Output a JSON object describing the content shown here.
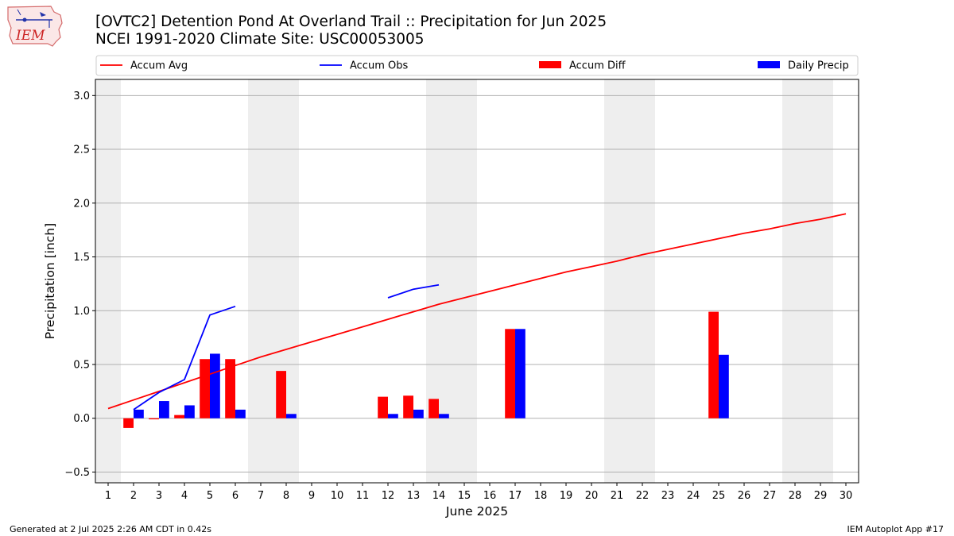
{
  "header": {
    "title_line1": "[OVTC2] Detention Pond At Overland Trail :: Precipitation for Jun 2025",
    "title_line2": "NCEI 1991-2020 Climate Site: USC00053005",
    "logo_text": "IEM"
  },
  "footer": {
    "left": "Generated at 2 Jul 2025 2:26 AM CDT in 0.42s",
    "right": "IEM Autoplot App #17"
  },
  "colors": {
    "avg": "#ff0000",
    "obs": "#0000ff",
    "diff": "#ff0000",
    "daily": "#0000ff",
    "weekend_band": "#eeeeee",
    "grid": "#b0b0b0"
  },
  "chart_data": {
    "type": "bar",
    "xlabel": "June 2025",
    "ylabel": "Precipitation [inch]",
    "xlim": [
      0.5,
      30.5
    ],
    "ylim": [
      -0.6,
      3.15
    ],
    "yticks": [
      -0.5,
      0.0,
      0.5,
      1.0,
      1.5,
      2.0,
      2.5,
      3.0
    ],
    "ytick_labels": [
      "−0.5",
      "0.0",
      "0.5",
      "1.0",
      "1.5",
      "2.0",
      "2.5",
      "3.0"
    ],
    "x": [
      1,
      2,
      3,
      4,
      5,
      6,
      7,
      8,
      9,
      10,
      11,
      12,
      13,
      14,
      15,
      16,
      17,
      18,
      19,
      20,
      21,
      22,
      23,
      24,
      25,
      26,
      27,
      28,
      29,
      30
    ],
    "xtick_labels": [
      "1",
      "2",
      "3",
      "4",
      "5",
      "6",
      "7",
      "8",
      "9",
      "10",
      "11",
      "12",
      "13",
      "14",
      "15",
      "16",
      "17",
      "18",
      "19",
      "20",
      "21",
      "22",
      "23",
      "24",
      "25",
      "26",
      "27",
      "28",
      "29",
      "30"
    ],
    "grid": "horizontal",
    "legend_position": "top",
    "weekend_spans": [
      [
        0.5,
        1.5
      ],
      [
        6.5,
        8.5
      ],
      [
        13.5,
        15.5
      ],
      [
        20.5,
        22.5
      ],
      [
        27.5,
        29.5
      ]
    ],
    "series": [
      {
        "name": "Accum Avg",
        "kind": "line",
        "values": [
          0.09,
          0.17,
          0.25,
          0.33,
          0.41,
          0.49,
          0.57,
          0.64,
          0.71,
          0.78,
          0.85,
          0.92,
          0.99,
          1.06,
          1.12,
          1.18,
          1.24,
          1.3,
          1.36,
          1.41,
          1.46,
          1.52,
          1.57,
          1.62,
          1.67,
          1.72,
          1.76,
          1.81,
          1.85,
          1.9
        ]
      },
      {
        "name": "Accum Obs",
        "kind": "line",
        "values": [
          null,
          0.08,
          0.24,
          0.36,
          0.96,
          1.04,
          null,
          null,
          null,
          null,
          null,
          1.12,
          1.2,
          1.24,
          null,
          null,
          null,
          null,
          null,
          null,
          null,
          null,
          null,
          null,
          null,
          null,
          null,
          null,
          null,
          null
        ]
      },
      {
        "name": "Accum Diff",
        "kind": "bar",
        "values": [
          null,
          -0.09,
          -0.01,
          0.03,
          0.55,
          0.55,
          null,
          0.44,
          null,
          null,
          null,
          0.2,
          0.21,
          0.18,
          null,
          null,
          0.83,
          null,
          null,
          null,
          null,
          null,
          null,
          null,
          0.99,
          null,
          null,
          null,
          null,
          null
        ]
      },
      {
        "name": "Daily Precip",
        "kind": "bar",
        "values": [
          null,
          0.08,
          0.16,
          0.12,
          0.6,
          0.08,
          null,
          0.04,
          null,
          null,
          null,
          0.04,
          0.08,
          0.04,
          null,
          null,
          0.83,
          null,
          null,
          null,
          null,
          null,
          null,
          null,
          0.59,
          null,
          null,
          null,
          null,
          null
        ]
      }
    ]
  }
}
